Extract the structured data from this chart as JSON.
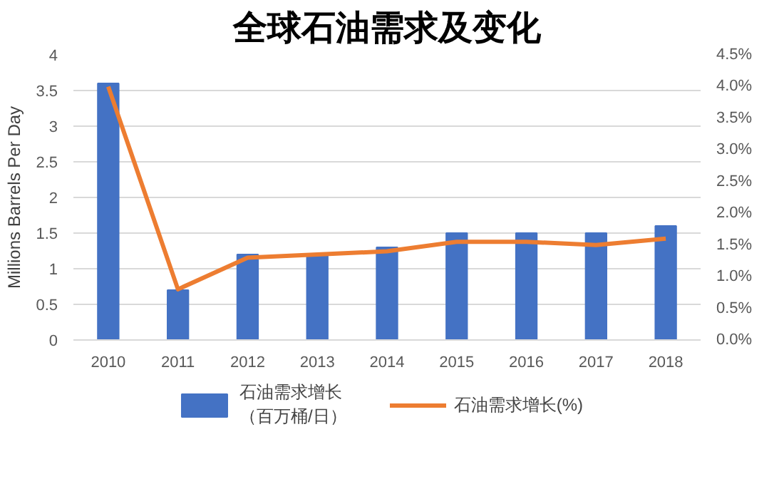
{
  "chart_data": {
    "type": "bar",
    "title": "全球石油需求及变化",
    "ylabel": "Millions Barrels Per Day",
    "categories": [
      "2010",
      "2011",
      "2012",
      "2013",
      "2014",
      "2015",
      "2016",
      "2017",
      "2018"
    ],
    "series": [
      {
        "name": "石油需求增长（百万桶/日）",
        "color": "#4472c4",
        "values": [
          3.6,
          0.7,
          1.2,
          1.2,
          1.3,
          1.5,
          1.5,
          1.5,
          1.6
        ]
      },
      {
        "name": "石油需求增长(%)",
        "type": "line",
        "axis": "y2",
        "color": "#ed7d31",
        "values": [
          4.0,
          0.8,
          1.3,
          1.35,
          1.4,
          1.55,
          1.55,
          1.5,
          1.6
        ]
      }
    ],
    "ylim": [
      0,
      4
    ],
    "yticks": [
      0,
      0.5,
      1,
      1.5,
      2,
      2.5,
      3,
      3.5,
      4
    ],
    "y2lim": [
      0,
      4.5
    ],
    "y2ticks": [
      {
        "value": 0,
        "label": "0.0%"
      },
      {
        "value": 0.5,
        "label": "0.5%"
      },
      {
        "value": 1,
        "label": "1.0%"
      },
      {
        "value": 1.5,
        "label": "1.5%"
      },
      {
        "value": 2,
        "label": "2.0%"
      },
      {
        "value": 2.5,
        "label": "2.5%"
      },
      {
        "value": 3,
        "label": "3.0%"
      },
      {
        "value": 3.5,
        "label": "3.5%"
      },
      {
        "value": 4,
        "label": "4.0%"
      },
      {
        "value": 4.5,
        "label": "4.5%"
      }
    ],
    "grid": "y",
    "legend": "bottom",
    "marker": "none",
    "line_style": "solid"
  }
}
